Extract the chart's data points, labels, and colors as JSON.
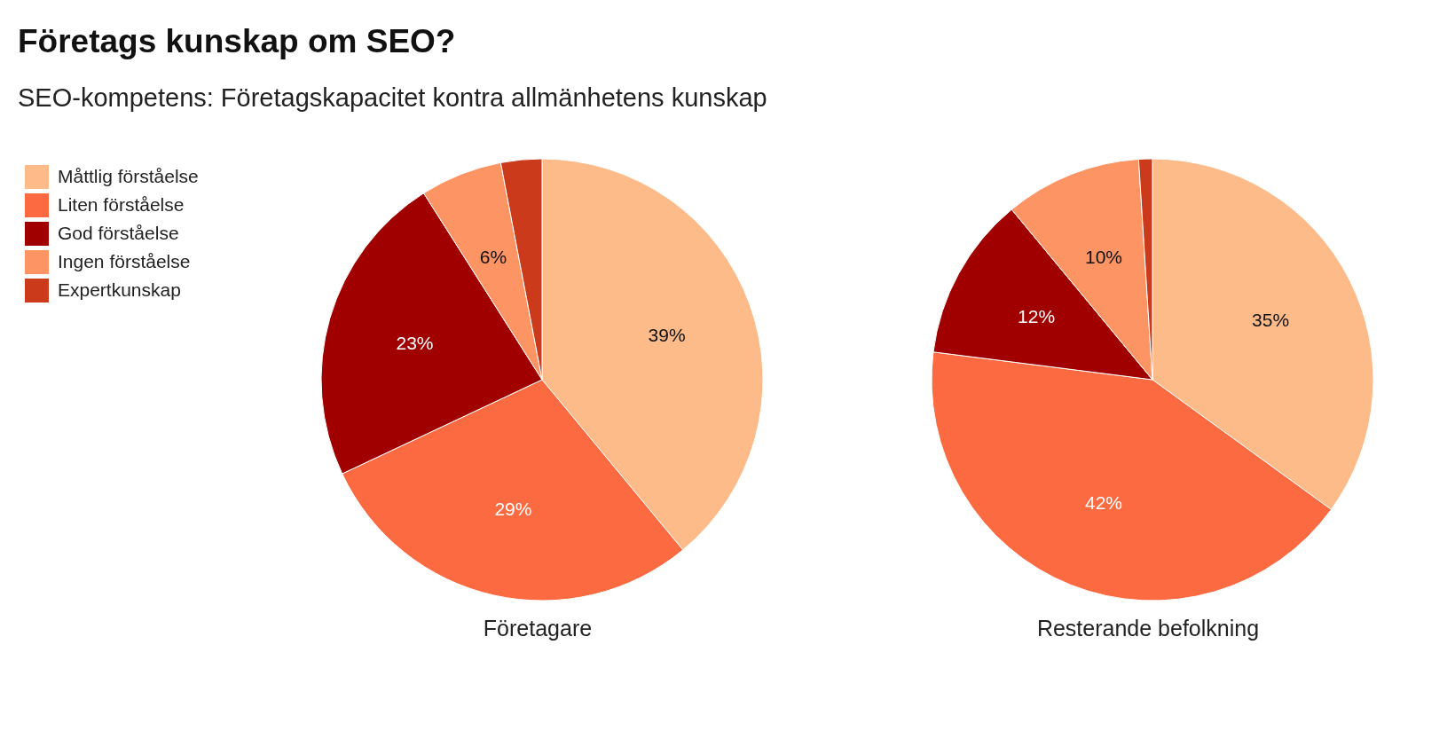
{
  "chart_data": [
    {
      "type": "pie",
      "title": "Företags kunskap om SEO?",
      "subtitle": "SEO-kompetens: Företagskapacitet kontra allmänhetens kunskap",
      "xlabel": "Företagare",
      "legend": "top left",
      "categories": [
        "Måttlig förståelse",
        "Liten förståelse",
        "God förståelse",
        "Ingen förståelse",
        "Expertkunskap"
      ],
      "values": [
        39,
        29,
        23,
        6,
        3
      ],
      "value_labels": [
        "39%",
        "29%",
        "23%",
        "6%",
        null
      ],
      "colors": [
        "#fdbb8a",
        "#fb6a40",
        "#a00000",
        "#fc9463",
        "#cc3a1c"
      ]
    },
    {
      "type": "pie",
      "xlabel": "Resterande befolkning",
      "categories": [
        null,
        null,
        null,
        null,
        null
      ],
      "values": [
        35,
        42,
        12,
        10,
        1
      ],
      "value_labels": [
        "35%",
        "42%",
        "12%",
        "10%",
        null
      ],
      "colors": [
        "#fdbb8a",
        "#fb6a40",
        "#a00000",
        "#fc9463",
        "#cc3a1c"
      ]
    }
  ]
}
